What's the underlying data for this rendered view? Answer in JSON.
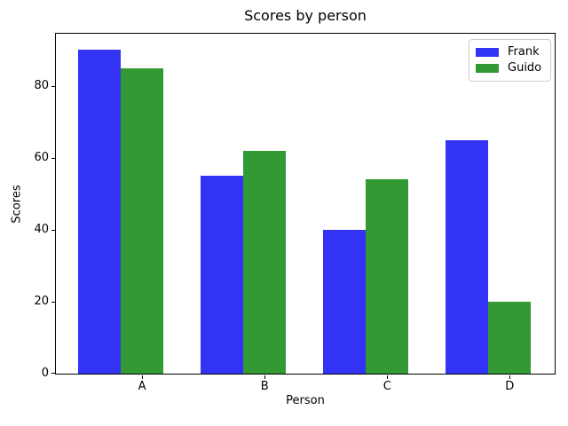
{
  "chart_data": {
    "type": "bar",
    "title": "Scores by person",
    "xlabel": "Person",
    "ylabel": "Scores",
    "categories": [
      "A",
      "B",
      "C",
      "D"
    ],
    "series": [
      {
        "name": "Frank",
        "color": "#3333f5",
        "values": [
          90,
          55,
          40,
          65
        ]
      },
      {
        "name": "Guido",
        "color": "#339933",
        "values": [
          85,
          62,
          54,
          20
        ]
      }
    ],
    "yticks": [
      0,
      20,
      40,
      60,
      80
    ],
    "ylim": [
      0,
      94.5
    ],
    "xlim_units": 4.07,
    "bar_width_fraction": 0.35,
    "legend_position": "upper right",
    "grid": false,
    "background_color": "#ffffff",
    "spine_color": "#000000"
  }
}
